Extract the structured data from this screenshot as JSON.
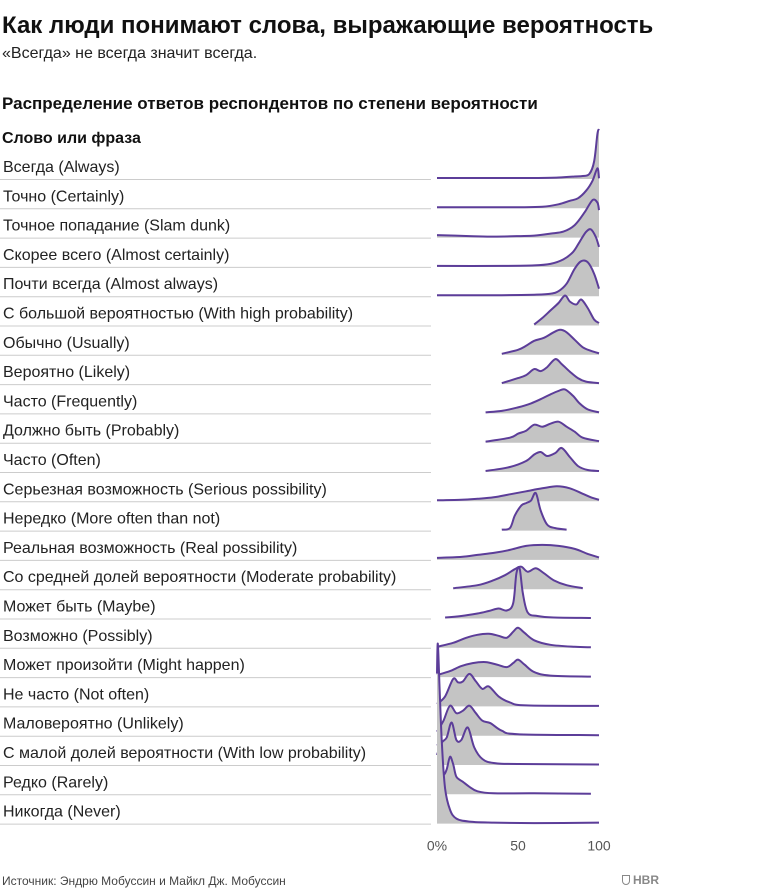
{
  "header": {
    "title": "Как люди понимают слова, выражающие вероятность",
    "subtitle": "«Всегда» не всегда значит всегда."
  },
  "footer": {
    "source": "Источник: Эндрю Мобуссин и Майкл Дж. Мобуссин",
    "logo_text": "HBR"
  },
  "colors": {
    "fill": "#c4c4c4",
    "line": "#5c3d99",
    "divider": "#cccccc",
    "text": "#222222"
  },
  "chart_data": {
    "type": "ridgeline",
    "title": "Распределение ответов респондентов по степени вероятности",
    "category_header": "Слово или фраза",
    "xlim": [
      0,
      100
    ],
    "x_ticks": [
      {
        "value": 0,
        "label": "0%"
      },
      {
        "value": 50,
        "label": "50"
      },
      {
        "value": 100,
        "label": "100"
      }
    ],
    "series": [
      {
        "label": "Всегда (Always)",
        "points": [
          [
            0,
            0.02
          ],
          [
            20,
            0.02
          ],
          [
            40,
            0.02
          ],
          [
            60,
            0.02
          ],
          [
            75,
            0.03
          ],
          [
            85,
            0.05
          ],
          [
            90,
            0.06
          ],
          [
            94,
            0.1
          ],
          [
            97,
            0.35
          ],
          [
            99,
            0.9
          ],
          [
            100,
            1.0
          ]
        ]
      },
      {
        "label": "Точно (Certainly)",
        "points": [
          [
            0,
            0.02
          ],
          [
            30,
            0.02
          ],
          [
            50,
            0.02
          ],
          [
            65,
            0.03
          ],
          [
            75,
            0.08
          ],
          [
            82,
            0.15
          ],
          [
            87,
            0.2
          ],
          [
            92,
            0.35
          ],
          [
            96,
            0.55
          ],
          [
            99,
            0.8
          ],
          [
            100,
            0.6
          ]
        ]
      },
      {
        "label": "Точное попадание (Slam dunk)",
        "points": [
          [
            0,
            0.05
          ],
          [
            20,
            0.03
          ],
          [
            35,
            0.02
          ],
          [
            50,
            0.03
          ],
          [
            60,
            0.04
          ],
          [
            70,
            0.08
          ],
          [
            78,
            0.12
          ],
          [
            85,
            0.25
          ],
          [
            91,
            0.5
          ],
          [
            96,
            0.75
          ],
          [
            99,
            0.7
          ],
          [
            100,
            0.55
          ]
        ]
      },
      {
        "label": "Скорее всего (Almost certainly)",
        "points": [
          [
            0,
            0.02
          ],
          [
            40,
            0.02
          ],
          [
            60,
            0.03
          ],
          [
            70,
            0.06
          ],
          [
            78,
            0.15
          ],
          [
            84,
            0.3
          ],
          [
            88,
            0.5
          ],
          [
            92,
            0.7
          ],
          [
            95,
            0.75
          ],
          [
            98,
            0.6
          ],
          [
            100,
            0.4
          ]
        ]
      },
      {
        "label": "Почти всегда (Almost always)",
        "points": [
          [
            0,
            0.02
          ],
          [
            40,
            0.02
          ],
          [
            60,
            0.03
          ],
          [
            70,
            0.05
          ],
          [
            75,
            0.1
          ],
          [
            80,
            0.25
          ],
          [
            85,
            0.55
          ],
          [
            89,
            0.7
          ],
          [
            93,
            0.68
          ],
          [
            97,
            0.45
          ],
          [
            100,
            0.15
          ]
        ]
      },
      {
        "label": "С большой вероятностью (With high probability)",
        "points": [
          [
            60,
            0.02
          ],
          [
            65,
            0.15
          ],
          [
            70,
            0.3
          ],
          [
            75,
            0.45
          ],
          [
            79,
            0.6
          ],
          [
            82,
            0.48
          ],
          [
            86,
            0.42
          ],
          [
            89,
            0.52
          ],
          [
            93,
            0.35
          ],
          [
            97,
            0.12
          ],
          [
            100,
            0.05
          ]
        ]
      },
      {
        "label": "Обычно (Usually)",
        "points": [
          [
            40,
            0.02
          ],
          [
            50,
            0.1
          ],
          [
            55,
            0.18
          ],
          [
            60,
            0.28
          ],
          [
            66,
            0.34
          ],
          [
            72,
            0.45
          ],
          [
            76,
            0.5
          ],
          [
            80,
            0.45
          ],
          [
            85,
            0.3
          ],
          [
            90,
            0.15
          ],
          [
            95,
            0.08
          ],
          [
            100,
            0.03
          ]
        ]
      },
      {
        "label": "Вероятно (Likely)",
        "points": [
          [
            40,
            0.02
          ],
          [
            50,
            0.12
          ],
          [
            55,
            0.18
          ],
          [
            60,
            0.3
          ],
          [
            64,
            0.26
          ],
          [
            68,
            0.34
          ],
          [
            73,
            0.5
          ],
          [
            77,
            0.4
          ],
          [
            82,
            0.25
          ],
          [
            87,
            0.12
          ],
          [
            92,
            0.05
          ],
          [
            100,
            0.02
          ]
        ]
      },
      {
        "label": "Часто (Frequently)",
        "points": [
          [
            30,
            0.02
          ],
          [
            40,
            0.05
          ],
          [
            50,
            0.12
          ],
          [
            58,
            0.2
          ],
          [
            65,
            0.3
          ],
          [
            70,
            0.38
          ],
          [
            75,
            0.45
          ],
          [
            79,
            0.48
          ],
          [
            84,
            0.35
          ],
          [
            88,
            0.2
          ],
          [
            93,
            0.08
          ],
          [
            100,
            0.02
          ]
        ]
      },
      {
        "label": "Должно быть (Probably)",
        "points": [
          [
            30,
            0.02
          ],
          [
            45,
            0.1
          ],
          [
            50,
            0.18
          ],
          [
            55,
            0.24
          ],
          [
            60,
            0.36
          ],
          [
            65,
            0.32
          ],
          [
            70,
            0.38
          ],
          [
            75,
            0.42
          ],
          [
            80,
            0.32
          ],
          [
            85,
            0.22
          ],
          [
            90,
            0.1
          ],
          [
            100,
            0.03
          ]
        ]
      },
      {
        "label": "Часто (Often)",
        "points": [
          [
            30,
            0.02
          ],
          [
            45,
            0.1
          ],
          [
            55,
            0.22
          ],
          [
            60,
            0.35
          ],
          [
            64,
            0.4
          ],
          [
            68,
            0.32
          ],
          [
            73,
            0.38
          ],
          [
            77,
            0.48
          ],
          [
            82,
            0.3
          ],
          [
            87,
            0.12
          ],
          [
            93,
            0.04
          ],
          [
            100,
            0.02
          ]
        ]
      },
      {
        "label": "Серьезная возможность (Serious possibility)",
        "points": [
          [
            0,
            0.02
          ],
          [
            15,
            0.03
          ],
          [
            25,
            0.05
          ],
          [
            35,
            0.08
          ],
          [
            45,
            0.14
          ],
          [
            55,
            0.2
          ],
          [
            65,
            0.26
          ],
          [
            74,
            0.3
          ],
          [
            82,
            0.26
          ],
          [
            90,
            0.15
          ],
          [
            95,
            0.08
          ],
          [
            100,
            0.03
          ]
        ]
      },
      {
        "label": "Нередко (More often than not)",
        "points": [
          [
            40,
            0.02
          ],
          [
            45,
            0.05
          ],
          [
            48,
            0.3
          ],
          [
            52,
            0.5
          ],
          [
            55,
            0.55
          ],
          [
            58,
            0.6
          ],
          [
            61,
            0.75
          ],
          [
            64,
            0.4
          ],
          [
            68,
            0.12
          ],
          [
            73,
            0.05
          ],
          [
            80,
            0.02
          ]
        ]
      },
      {
        "label": "Реальная возможность (Real possibility)",
        "points": [
          [
            0,
            0.04
          ],
          [
            15,
            0.06
          ],
          [
            25,
            0.1
          ],
          [
            35,
            0.14
          ],
          [
            45,
            0.2
          ],
          [
            55,
            0.28
          ],
          [
            65,
            0.3
          ],
          [
            75,
            0.28
          ],
          [
            85,
            0.22
          ],
          [
            93,
            0.12
          ],
          [
            100,
            0.05
          ]
        ]
      },
      {
        "label": "Со средней долей вероятности (Moderate probability)",
        "points": [
          [
            10,
            0.02
          ],
          [
            25,
            0.08
          ],
          [
            35,
            0.18
          ],
          [
            42,
            0.28
          ],
          [
            48,
            0.4
          ],
          [
            52,
            0.45
          ],
          [
            56,
            0.35
          ],
          [
            61,
            0.42
          ],
          [
            66,
            0.32
          ],
          [
            72,
            0.18
          ],
          [
            80,
            0.08
          ],
          [
            90,
            0.02
          ]
        ]
      },
      {
        "label": "Может быть (Maybe)",
        "points": [
          [
            5,
            0.02
          ],
          [
            15,
            0.05
          ],
          [
            25,
            0.1
          ],
          [
            32,
            0.15
          ],
          [
            38,
            0.2
          ],
          [
            43,
            0.16
          ],
          [
            47,
            0.3
          ],
          [
            49,
            0.9
          ],
          [
            51,
            1.0
          ],
          [
            53,
            0.5
          ],
          [
            56,
            0.12
          ],
          [
            62,
            0.05
          ],
          [
            72,
            0.02
          ],
          [
            95,
            0.01
          ]
        ]
      },
      {
        "label": "Возможно (Possibly)",
        "points": [
          [
            0,
            0.02
          ],
          [
            10,
            0.1
          ],
          [
            18,
            0.2
          ],
          [
            25,
            0.26
          ],
          [
            32,
            0.28
          ],
          [
            38,
            0.24
          ],
          [
            43,
            0.2
          ],
          [
            47,
            0.32
          ],
          [
            50,
            0.4
          ],
          [
            54,
            0.3
          ],
          [
            60,
            0.15
          ],
          [
            70,
            0.06
          ],
          [
            85,
            0.02
          ],
          [
            95,
            0.01
          ]
        ]
      },
      {
        "label": "Может произойти (Might happen)",
        "points": [
          [
            0,
            0.04
          ],
          [
            8,
            0.12
          ],
          [
            15,
            0.22
          ],
          [
            22,
            0.28
          ],
          [
            30,
            0.3
          ],
          [
            37,
            0.25
          ],
          [
            43,
            0.2
          ],
          [
            47,
            0.28
          ],
          [
            50,
            0.35
          ],
          [
            54,
            0.25
          ],
          [
            60,
            0.1
          ],
          [
            70,
            0.03
          ],
          [
            95,
            0.01
          ]
        ]
      },
      {
        "label": "Не часто (Not often)",
        "points": [
          [
            0,
            0.05
          ],
          [
            5,
            0.2
          ],
          [
            10,
            0.55
          ],
          [
            13,
            0.48
          ],
          [
            16,
            0.5
          ],
          [
            20,
            0.65
          ],
          [
            24,
            0.5
          ],
          [
            28,
            0.35
          ],
          [
            32,
            0.4
          ],
          [
            38,
            0.2
          ],
          [
            45,
            0.08
          ],
          [
            55,
            0.02
          ],
          [
            100,
            0.01
          ]
        ]
      },
      {
        "label": "Маловероятно (Unlikely)",
        "points": [
          [
            0,
            0.08
          ],
          [
            4,
            0.3
          ],
          [
            8,
            0.6
          ],
          [
            12,
            0.45
          ],
          [
            16,
            0.5
          ],
          [
            20,
            0.6
          ],
          [
            24,
            0.45
          ],
          [
            28,
            0.3
          ],
          [
            33,
            0.25
          ],
          [
            40,
            0.1
          ],
          [
            50,
            0.03
          ],
          [
            100,
            0.01
          ]
        ]
      },
      {
        "label": "С малой долей вероятности (With low probability)",
        "points": [
          [
            0,
            0.2
          ],
          [
            3,
            0.45
          ],
          [
            6,
            0.55
          ],
          [
            9,
            0.85
          ],
          [
            12,
            0.5
          ],
          [
            15,
            0.5
          ],
          [
            19,
            0.75
          ],
          [
            23,
            0.35
          ],
          [
            28,
            0.12
          ],
          [
            35,
            0.04
          ],
          [
            50,
            0.02
          ],
          [
            100,
            0.01
          ]
        ]
      },
      {
        "label": "Редко (Rarely)",
        "points": [
          [
            0,
            1.0
          ],
          [
            1,
            0.95
          ],
          [
            2,
            0.6
          ],
          [
            4,
            0.4
          ],
          [
            6,
            0.5
          ],
          [
            8,
            0.75
          ],
          [
            10,
            0.6
          ],
          [
            12,
            0.35
          ],
          [
            16,
            0.25
          ],
          [
            20,
            0.15
          ],
          [
            25,
            0.06
          ],
          [
            35,
            0.02
          ],
          [
            60,
            0.02
          ],
          [
            95,
            0.01
          ]
        ]
      },
      {
        "label": "Никогда (Never)",
        "points": [
          [
            0,
            3.0
          ],
          [
            0.5,
            3.6
          ],
          [
            1.5,
            2.8
          ],
          [
            3,
            1.6
          ],
          [
            5,
            0.7
          ],
          [
            8,
            0.28
          ],
          [
            12,
            0.1
          ],
          [
            20,
            0.04
          ],
          [
            35,
            0.02
          ],
          [
            60,
            0.01
          ],
          [
            100,
            0.02
          ]
        ]
      }
    ]
  }
}
